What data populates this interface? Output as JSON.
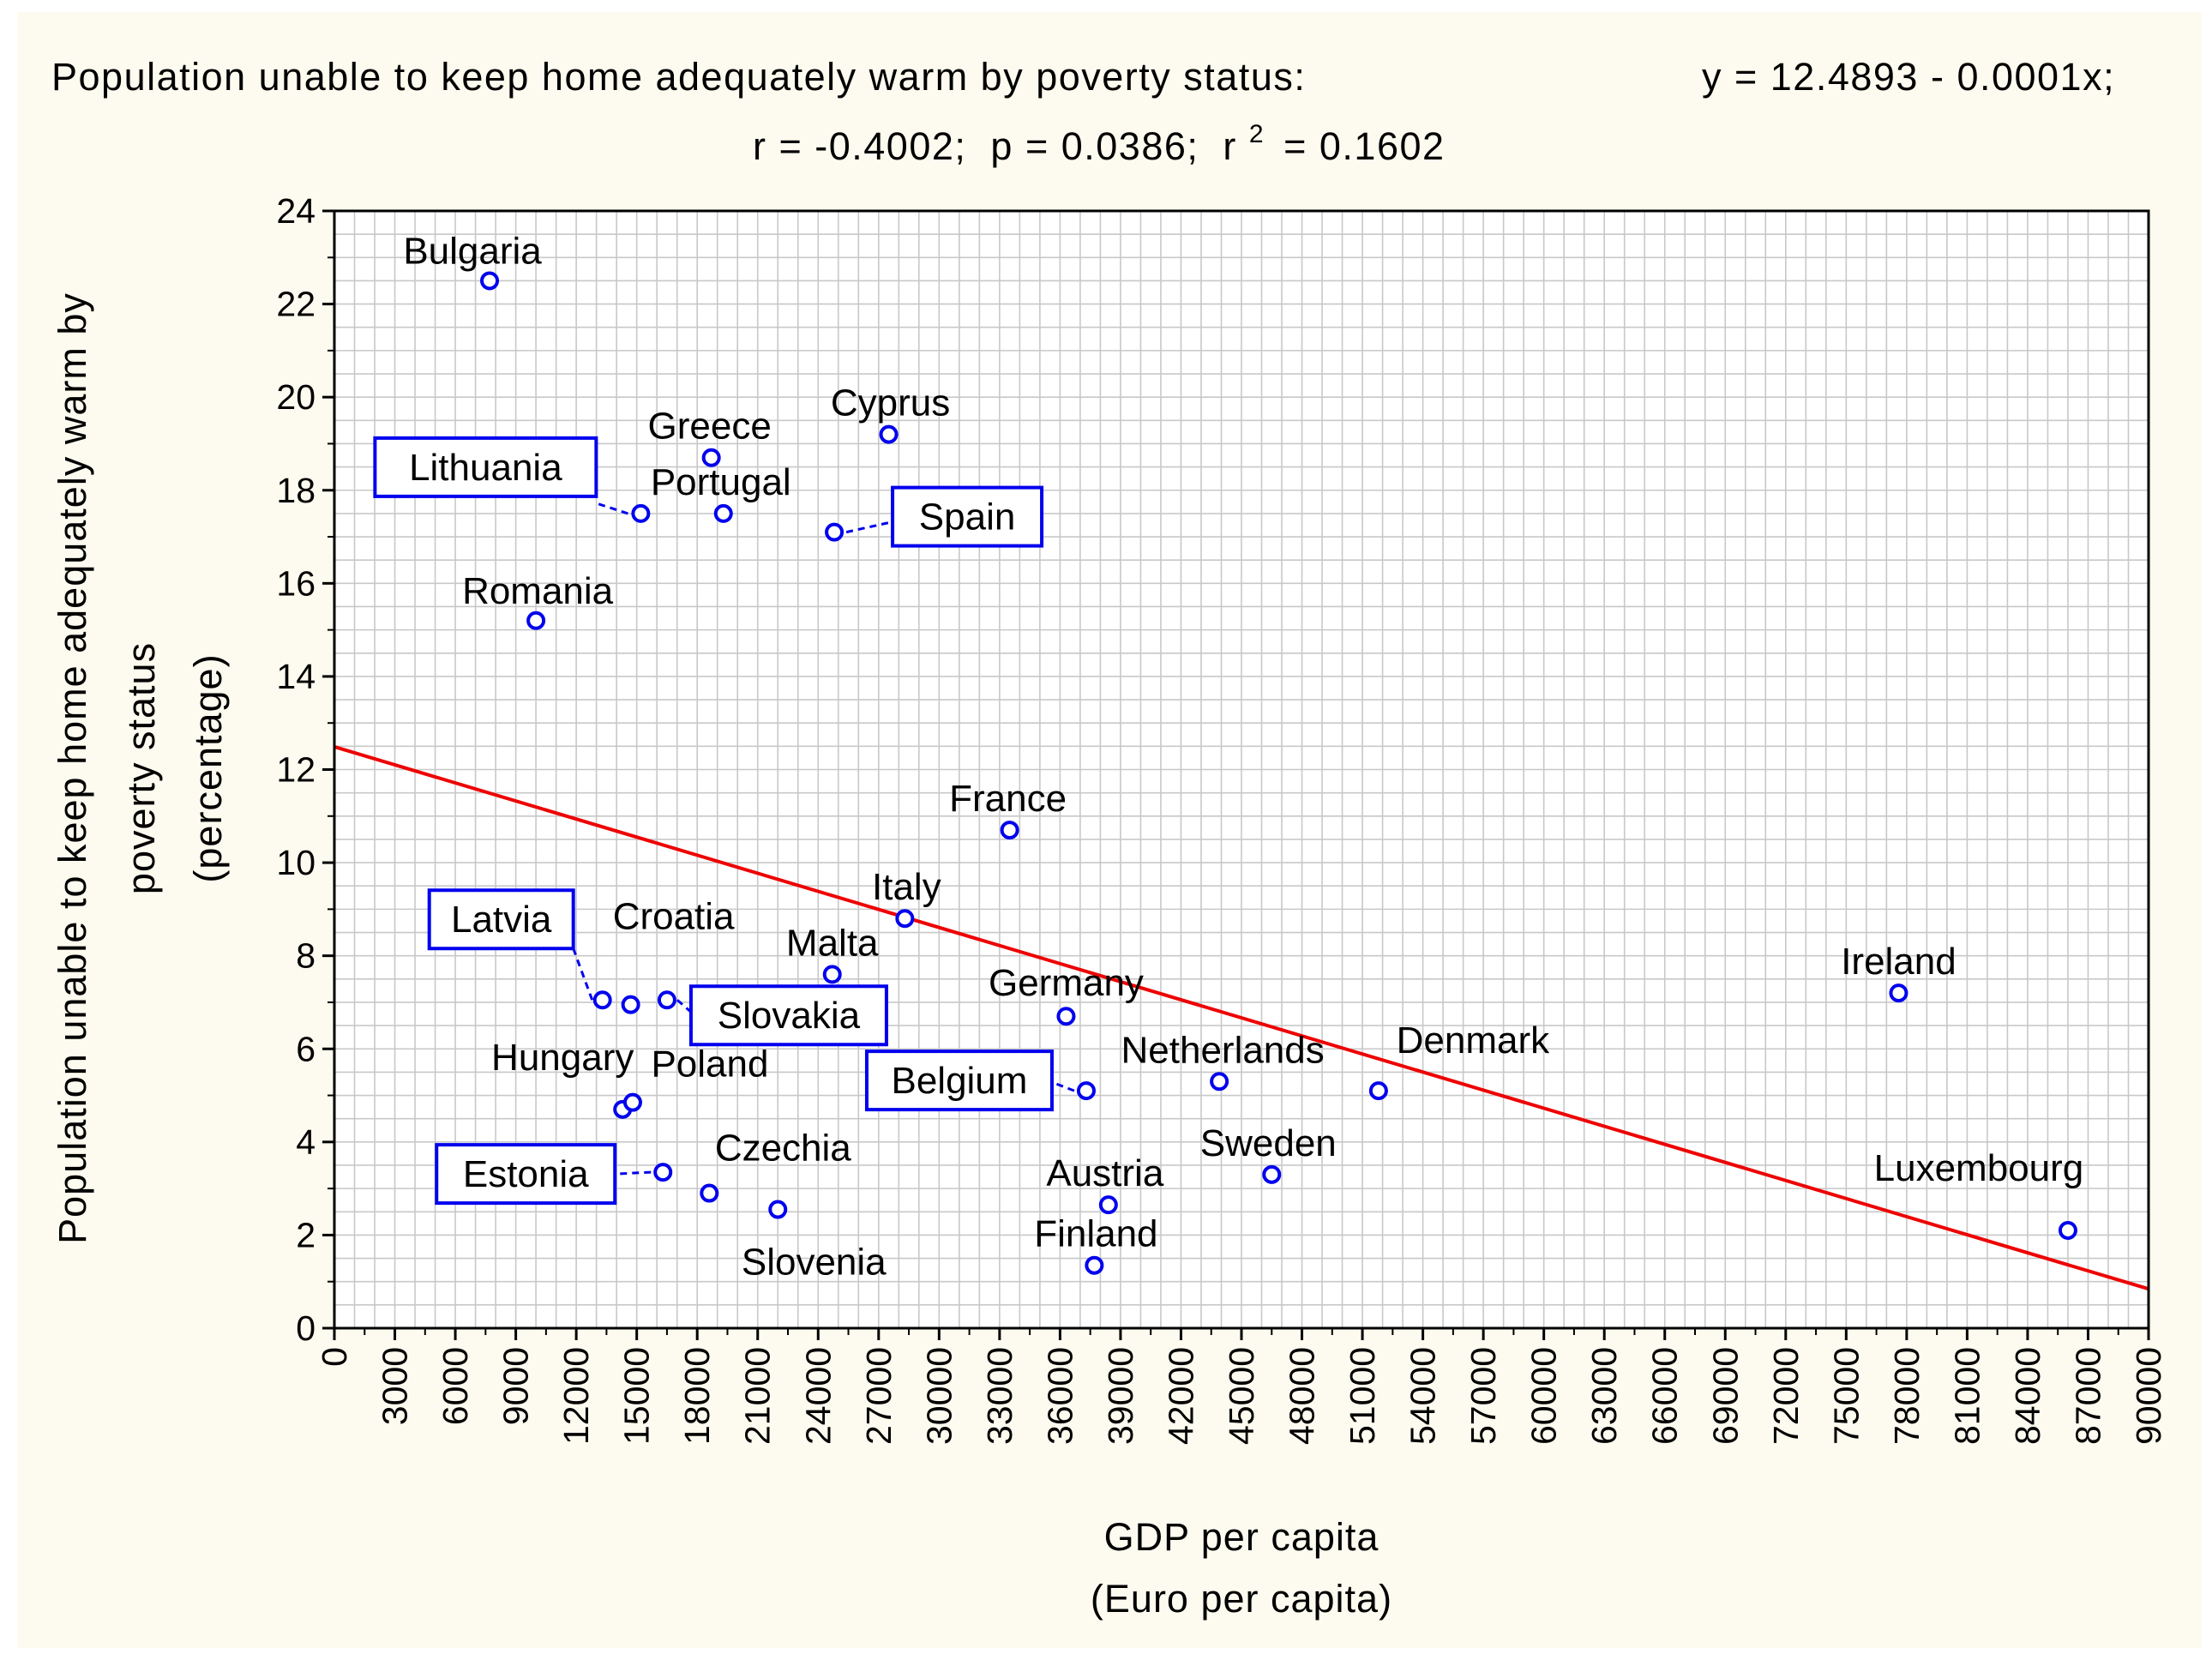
{
  "chart_data": {
    "type": "scatter",
    "title": "Population unable to keep home adequately warm by poverty status:",
    "equation": "y = 12.4893 - 0.0001x;",
    "stats": {
      "r": "r = -0.4002;",
      "p": "p = 0.0386;",
      "r2_prefix": "r",
      "r2_sup": "2",
      "r2_value": "= 0.1602"
    },
    "xlabel": "GDP per capita",
    "xlabel_unit": "(Euro per capita)",
    "ylabel": "Population unable to keep home adequately warm by",
    "ylabel2": "poverty status",
    "ylabel_unit": "(percentage)",
    "xlim": [
      0,
      90000
    ],
    "ylim": [
      0,
      24
    ],
    "x_ticks": [
      "0",
      "3000",
      "6000",
      "9000",
      "12000",
      "15000",
      "18000",
      "21000",
      "24000",
      "27000",
      "30000",
      "33000",
      "36000",
      "39000",
      "42000",
      "45000",
      "48000",
      "51000",
      "54000",
      "57000",
      "60000",
      "63000",
      "66000",
      "69000",
      "72000",
      "75000",
      "78000",
      "81000",
      "84000",
      "87000",
      "90000"
    ],
    "y_ticks": [
      "0",
      "2",
      "4",
      "6",
      "8",
      "10",
      "12",
      "14",
      "16",
      "18",
      "20",
      "22",
      "24"
    ],
    "grid": true,
    "regression": {
      "intercept": 12.4893,
      "slope": -0.0001294
    },
    "colors": {
      "marker": "#0000ee",
      "line": "#ee0000",
      "plot_bg": "#ffffff",
      "outer_bg": "#fdfbef",
      "grid": "#c8c8c8"
    },
    "points": [
      {
        "name": "Bulgaria",
        "x": 7700,
        "y": 22.5,
        "boxed": false
      },
      {
        "name": "Romania",
        "x": 10000,
        "y": 15.2,
        "boxed": false
      },
      {
        "name": "Greece",
        "x": 18700,
        "y": 18.7,
        "boxed": false
      },
      {
        "name": "Portugal",
        "x": 19300,
        "y": 17.5,
        "boxed": false
      },
      {
        "name": "Cyprus",
        "x": 27500,
        "y": 19.2,
        "boxed": false
      },
      {
        "name": "Lithuania",
        "x": 15200,
        "y": 17.5,
        "boxed": true
      },
      {
        "name": "Spain",
        "x": 24800,
        "y": 17.1,
        "boxed": true
      },
      {
        "name": "France",
        "x": 33500,
        "y": 10.7,
        "boxed": false
      },
      {
        "name": "Italy",
        "x": 28300,
        "y": 8.8,
        "boxed": false
      },
      {
        "name": "Malta",
        "x": 24700,
        "y": 7.6,
        "boxed": false
      },
      {
        "name": "Croatia",
        "x": 14700,
        "y": 6.95,
        "boxed": false
      },
      {
        "name": "Latvia",
        "x": 13300,
        "y": 7.05,
        "boxed": true
      },
      {
        "name": "Slovakia",
        "x": 16500,
        "y": 7.05,
        "boxed": true
      },
      {
        "name": "Germany",
        "x": 36300,
        "y": 6.7,
        "boxed": false
      },
      {
        "name": "Belgium",
        "x": 37300,
        "y": 5.1,
        "boxed": true
      },
      {
        "name": "Netherlands",
        "x": 43900,
        "y": 5.3,
        "boxed": false
      },
      {
        "name": "Denmark",
        "x": 51800,
        "y": 5.1,
        "boxed": false
      },
      {
        "name": "Hungary",
        "x": 14300,
        "y": 4.7,
        "boxed": false
      },
      {
        "name": "Poland",
        "x": 14800,
        "y": 4.85,
        "boxed": false
      },
      {
        "name": "Estonia",
        "x": 16300,
        "y": 3.35,
        "boxed": true
      },
      {
        "name": "Czechia",
        "x": 18600,
        "y": 2.9,
        "boxed": false
      },
      {
        "name": "Slovenia",
        "x": 22000,
        "y": 2.55,
        "boxed": false
      },
      {
        "name": "Austria",
        "x": 38400,
        "y": 2.65,
        "boxed": false
      },
      {
        "name": "Sweden",
        "x": 46500,
        "y": 3.3,
        "boxed": false
      },
      {
        "name": "Finland",
        "x": 37700,
        "y": 1.35,
        "boxed": false
      },
      {
        "name": "Ireland",
        "x": 77600,
        "y": 7.2,
        "boxed": false
      },
      {
        "name": "Luxembourg",
        "x": 86000,
        "y": 2.1,
        "boxed": false
      }
    ]
  }
}
